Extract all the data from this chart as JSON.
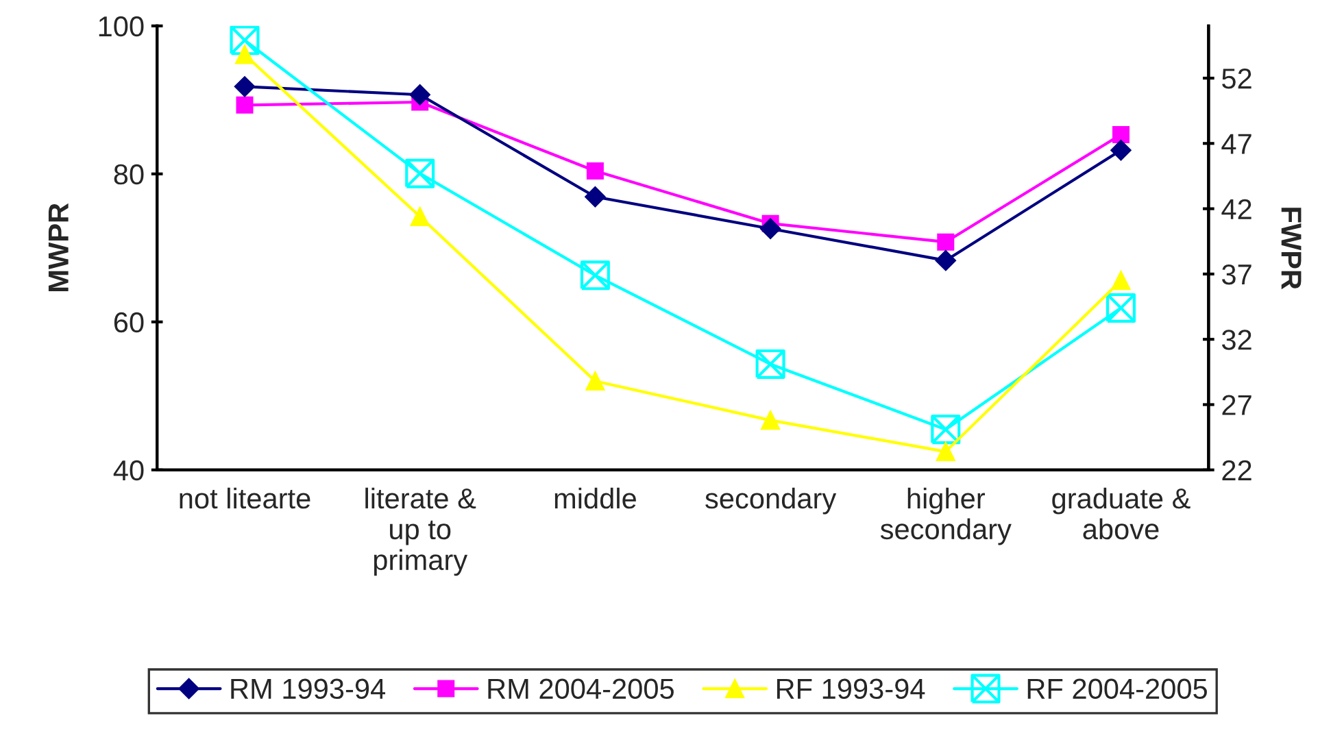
{
  "chart_data": {
    "type": "line",
    "categories": [
      "not litearte",
      "literate &\nup to\nprimary",
      "middle",
      "secondary",
      "higher\nsecondary",
      "graduate &\nabove"
    ],
    "ylabel": "MWPR",
    "y2label": "FWPR",
    "ylim": [
      40,
      100
    ],
    "yticks": [
      40,
      60,
      80,
      100
    ],
    "y2lim": [
      22,
      56
    ],
    "y2ticks": [
      22,
      27,
      32,
      37,
      42,
      47,
      52
    ],
    "grid": false,
    "legend": "bottom",
    "series": [
      {
        "name": "RM 1993-94",
        "color": "#000080",
        "marker": "diamond",
        "values": [
          91.8,
          90.7,
          76.9,
          72.6,
          68.3,
          83.2
        ]
      },
      {
        "name": "RM 2004-2005",
        "color": "#ff00ff",
        "marker": "square",
        "values": [
          89.3,
          89.7,
          80.4,
          73.3,
          70.8,
          85.3
        ]
      },
      {
        "name": "RF 1993-94",
        "color": "#ffff00",
        "marker": "triangle",
        "axis": "y2",
        "values": [
          53.8,
          41.4,
          28.8,
          25.8,
          23.4,
          36.5
        ]
      },
      {
        "name": "RF 2004-2005",
        "color": "#00ffff",
        "marker": "cross",
        "axis": "y2",
        "values": [
          54.9,
          44.7,
          36.9,
          30.1,
          25.1,
          34.4
        ]
      }
    ]
  }
}
